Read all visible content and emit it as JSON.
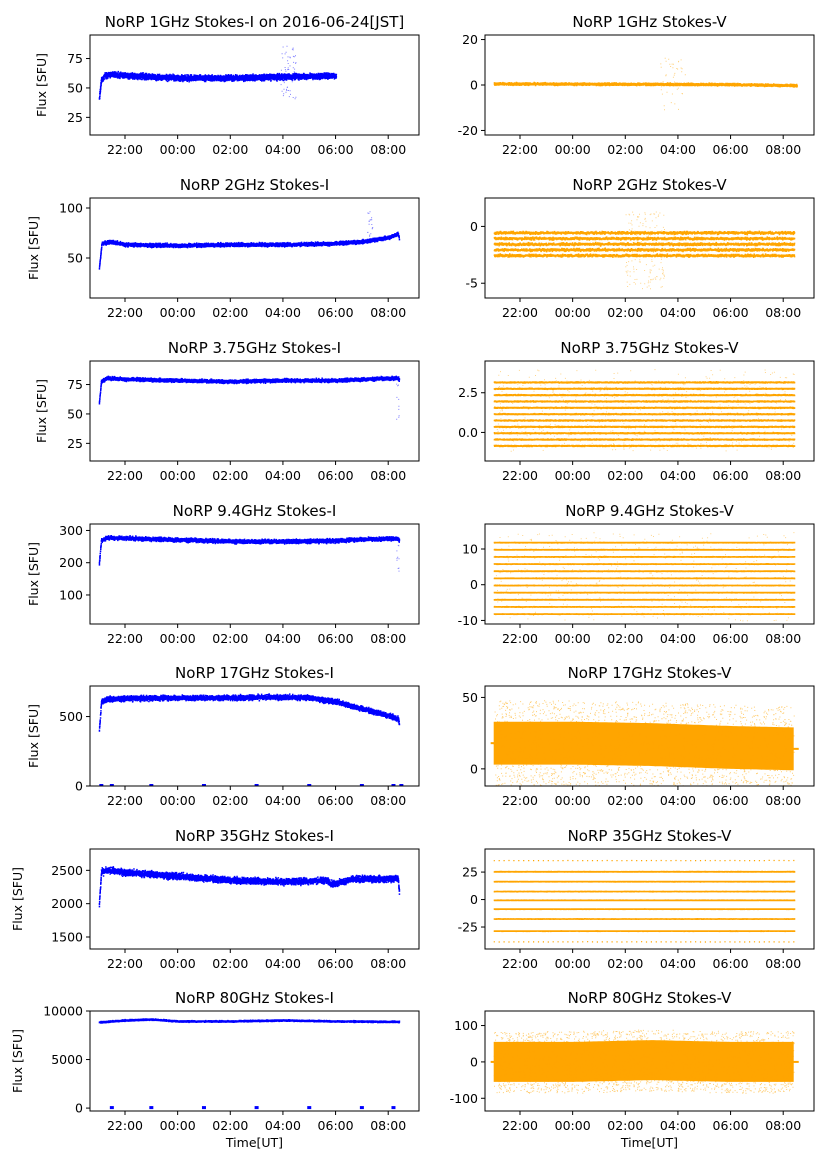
{
  "figure": {
    "observatory": "NoRP",
    "date_label": "2016-06-24[JST]",
    "x_label": "Time[UT]",
    "y_label": "Flux [SFU]"
  },
  "colors": {
    "stokes_i": "#0000ff",
    "stokes_v": "#ffa500"
  },
  "chart_data": [
    {
      "type": "scatter",
      "title": "NoRP 1GHz Stokes-I on 2016-06-24[JST]",
      "ylabel": "Flux [SFU]",
      "xlabel": "",
      "ylim": [
        10,
        95
      ],
      "yticks": [
        25,
        50,
        75
      ],
      "xlim": [
        20.67,
        33.17
      ],
      "xticks": [
        22,
        24,
        26,
        28,
        30,
        32
      ],
      "xticklabels": [
        "22:00",
        "00:00",
        "02:00",
        "04:00",
        "06:00",
        "08:00"
      ],
      "series": [
        {
          "stokes": "I",
          "color": "#0000ff",
          "x_start": 21.0,
          "x_end": 30.0,
          "baseline": [
            [
              21.0,
              41
            ],
            [
              21.08,
              57
            ],
            [
              21.2,
              61
            ],
            [
              21.5,
              62
            ],
            [
              22,
              61
            ],
            [
              23,
              60
            ],
            [
              24,
              59
            ],
            [
              26,
              59
            ],
            [
              28,
              60
            ],
            [
              29,
              60.5
            ],
            [
              30,
              61
            ]
          ],
          "noise": 2,
          "spikes": {
            "x_range": [
              27.9,
              28.5
            ],
            "low": 40,
            "high": 88,
            "count": 60
          }
        }
      ]
    },
    {
      "type": "scatter",
      "title": "NoRP 1GHz Stokes-V",
      "ylabel": "",
      "xlabel": "",
      "ylim": [
        -22,
        22
      ],
      "yticks": [
        -20,
        0,
        20
      ],
      "xlim": [
        20.67,
        33.17
      ],
      "xticks": [
        22,
        24,
        26,
        28,
        30,
        32
      ],
      "xticklabels": [
        "22:00",
        "00:00",
        "02:00",
        "04:00",
        "06:00",
        "08:00"
      ],
      "series": [
        {
          "stokes": "V",
          "color": "#ffa500",
          "x_start": 21.0,
          "x_end": 32.5,
          "baseline": [
            [
              21,
              0.8
            ],
            [
              30,
              0.5
            ],
            [
              32.5,
              0
            ]
          ],
          "noise": 0.4,
          "spikes": {
            "x_range": [
              27.3,
              28.4
            ],
            "low": -12,
            "high": 12,
            "count": 40
          }
        }
      ]
    },
    {
      "type": "scatter",
      "title": "NoRP 2GHz Stokes-I",
      "ylabel": "Flux [SFU]",
      "xlabel": "",
      "ylim": [
        10,
        110
      ],
      "yticks": [
        50,
        100
      ],
      "xlim": [
        20.67,
        33.17
      ],
      "xticks": [
        22,
        24,
        26,
        28,
        30,
        32
      ],
      "xticklabels": [
        "22:00",
        "00:00",
        "02:00",
        "04:00",
        "06:00",
        "08:00"
      ],
      "series": [
        {
          "stokes": "I",
          "color": "#0000ff",
          "x_start": 21.0,
          "x_end": 32.4,
          "baseline": [
            [
              21.0,
              40
            ],
            [
              21.1,
              65
            ],
            [
              21.4,
              67
            ],
            [
              22,
              64
            ],
            [
              24,
              63
            ],
            [
              26,
              64
            ],
            [
              28,
              64
            ],
            [
              30,
              65
            ],
            [
              31,
              67
            ],
            [
              32,
              71
            ],
            [
              32.35,
              75
            ],
            [
              32.4,
              70
            ]
          ],
          "noise": 1.5,
          "spikes": {
            "x_range": [
              31.2,
              31.4
            ],
            "low": 70,
            "high": 98,
            "count": 20
          }
        }
      ]
    },
    {
      "type": "scatter",
      "title": "NoRP 2GHz Stokes-V",
      "ylabel": "",
      "xlabel": "",
      "ylim": [
        -6.3,
        2.5
      ],
      "yticks": [
        -5,
        0
      ],
      "xlim": [
        20.67,
        33.17
      ],
      "xticks": [
        22,
        24,
        26,
        28,
        30,
        32
      ],
      "xticklabels": [
        "22:00",
        "00:00",
        "02:00",
        "04:00",
        "06:00",
        "08:00"
      ],
      "series": [
        {
          "stokes": "V",
          "color": "#ffa500",
          "x_start": 21.0,
          "x_end": 32.4,
          "levels": [
            -0.5,
            -1.0,
            -1.5,
            -2.0,
            -2.5
          ],
          "noise": 0.3,
          "spikes": {
            "x_range": [
              26.0,
              27.5
            ],
            "low": -5.5,
            "high": 1.5,
            "count": 25
          }
        }
      ]
    },
    {
      "type": "scatter",
      "title": "NoRP 3.75GHz Stokes-I",
      "ylabel": "Flux [SFU]",
      "xlabel": "",
      "ylim": [
        10,
        95
      ],
      "yticks": [
        25,
        50,
        75
      ],
      "xlim": [
        20.67,
        33.17
      ],
      "xticks": [
        22,
        24,
        26,
        28,
        30,
        32
      ],
      "xticklabels": [
        "22:00",
        "00:00",
        "02:00",
        "04:00",
        "06:00",
        "08:00"
      ],
      "series": [
        {
          "stokes": "I",
          "color": "#0000ff",
          "x_start": 21.0,
          "x_end": 32.4,
          "baseline": [
            [
              21.0,
              60
            ],
            [
              21.08,
              78
            ],
            [
              21.3,
              81
            ],
            [
              22,
              80
            ],
            [
              24,
              79
            ],
            [
              26,
              78
            ],
            [
              28,
              79
            ],
            [
              30,
              79
            ],
            [
              31,
              80
            ],
            [
              32.3,
              81
            ],
            [
              32.4,
              80
            ]
          ],
          "noise": 1.2,
          "spikes": {
            "x_range": [
              32.3,
              32.4
            ],
            "low": 45,
            "high": 80,
            "count": 10
          }
        }
      ]
    },
    {
      "type": "scatter",
      "title": "NoRP 3.75GHz Stokes-V",
      "ylabel": "",
      "xlabel": "",
      "ylim": [
        -1.8,
        4.5
      ],
      "yticks": [
        0.0,
        2.5
      ],
      "ytickdecimals": 1,
      "xlim": [
        20.67,
        33.17
      ],
      "xticks": [
        22,
        24,
        26,
        28,
        30,
        32
      ],
      "xticklabels": [
        "22:00",
        "00:00",
        "02:00",
        "04:00",
        "06:00",
        "08:00"
      ],
      "series": [
        {
          "stokes": "V",
          "color": "#ffa500",
          "x_start": 21.0,
          "x_end": 32.4,
          "levels": [
            -0.8,
            -0.4,
            0.0,
            0.4,
            0.8,
            1.2,
            1.6,
            2.0,
            2.4,
            2.8,
            3.2
          ],
          "noise": 0.08,
          "spikes": {
            "x_range": [
              21.0,
              32.4
            ],
            "low": -1.2,
            "high": 4.0,
            "count": 60
          }
        }
      ]
    },
    {
      "type": "scatter",
      "title": "NoRP 9.4GHz Stokes-I",
      "ylabel": "Flux [SFU]",
      "xlabel": "",
      "ylim": [
        10,
        320
      ],
      "yticks": [
        100,
        200,
        300
      ],
      "xlim": [
        20.67,
        33.17
      ],
      "xticks": [
        22,
        24,
        26,
        28,
        30,
        32
      ],
      "xticklabels": [
        "22:00",
        "00:00",
        "02:00",
        "04:00",
        "06:00",
        "08:00"
      ],
      "series": [
        {
          "stokes": "I",
          "color": "#0000ff",
          "x_start": 21.0,
          "x_end": 32.4,
          "baseline": [
            [
              21.0,
              200
            ],
            [
              21.08,
              270
            ],
            [
              21.3,
              280
            ],
            [
              22,
              278
            ],
            [
              24,
              273
            ],
            [
              26,
              268
            ],
            [
              28,
              268
            ],
            [
              30,
              270
            ],
            [
              31,
              275
            ],
            [
              32.3,
              277
            ],
            [
              32.4,
              272
            ]
          ],
          "noise": 5,
          "spikes": {
            "x_range": [
              32.3,
              32.4
            ],
            "low": 160,
            "high": 280,
            "count": 10
          }
        }
      ]
    },
    {
      "type": "scatter",
      "title": "NoRP 9.4GHz Stokes-V",
      "ylabel": "",
      "xlabel": "",
      "ylim": [
        -11,
        17
      ],
      "yticks": [
        -10,
        0,
        10
      ],
      "xlim": [
        20.67,
        33.17
      ],
      "xticks": [
        22,
        24,
        26,
        28,
        30,
        32
      ],
      "xticklabels": [
        "22:00",
        "00:00",
        "02:00",
        "04:00",
        "06:00",
        "08:00"
      ],
      "series": [
        {
          "stokes": "V",
          "color": "#ffa500",
          "x_start": 21.0,
          "x_end": 32.4,
          "levels": [
            -8,
            -6,
            -4,
            -2,
            0,
            2,
            4,
            6,
            8,
            10,
            12
          ],
          "noise": 0.15,
          "spikes": {
            "x_range": [
              21.0,
              32.4
            ],
            "low": -10,
            "high": 15,
            "count": 60
          }
        }
      ]
    },
    {
      "type": "scatter",
      "title": "NoRP 17GHz Stokes-I",
      "ylabel": "Flux [SFU]",
      "xlabel": "",
      "ylim": [
        0,
        720
      ],
      "yticks": [
        0,
        500
      ],
      "xlim": [
        20.67,
        33.17
      ],
      "xticks": [
        22,
        24,
        26,
        28,
        30,
        32
      ],
      "xticklabels": [
        "22:00",
        "00:00",
        "02:00",
        "04:00",
        "06:00",
        "08:00"
      ],
      "series": [
        {
          "stokes": "I",
          "color": "#0000ff",
          "x_start": 21.0,
          "x_end": 32.4,
          "baseline": [
            [
              21.0,
              400
            ],
            [
              21.08,
              610
            ],
            [
              21.3,
              630
            ],
            [
              22,
              635
            ],
            [
              24,
              640
            ],
            [
              26,
              640
            ],
            [
              28,
              645
            ],
            [
              29,
              640
            ],
            [
              30,
              610
            ],
            [
              31,
              560
            ],
            [
              32,
              510
            ],
            [
              32.35,
              490
            ],
            [
              32.4,
              450
            ]
          ],
          "noise": 15,
          "dropouts": [
            21.1,
            21.5,
            23.0,
            25.0,
            27.0,
            29.0,
            31.0,
            32.2,
            32.5
          ]
        }
      ]
    },
    {
      "type": "scatter",
      "title": "NoRP 17GHz Stokes-V",
      "ylabel": "",
      "xlabel": "",
      "ylim": [
        -12,
        58
      ],
      "yticks": [
        0,
        50
      ],
      "xlim": [
        20.67,
        33.17
      ],
      "xticks": [
        22,
        24,
        26,
        28,
        30,
        32
      ],
      "xticklabels": [
        "22:00",
        "00:00",
        "02:00",
        "04:00",
        "06:00",
        "08:00"
      ],
      "series": [
        {
          "stokes": "V",
          "color": "#ffa500",
          "x_start": 21.0,
          "x_end": 32.4,
          "band": [
            [
              21.0,
              18
            ],
            [
              24,
              18
            ],
            [
              27,
              17
            ],
            [
              30,
              15
            ],
            [
              32.4,
              14
            ]
          ],
          "band_half": 15,
          "outlier": 30,
          "density": 2200
        }
      ]
    },
    {
      "type": "scatter",
      "title": "NoRP 35GHz Stokes-I",
      "ylabel": "Flux [SFU]",
      "xlabel": "",
      "ylim": [
        1320,
        2820
      ],
      "yticks": [
        1500,
        2000,
        2500
      ],
      "xlim": [
        20.67,
        33.17
      ],
      "xticks": [
        22,
        24,
        26,
        28,
        30,
        32
      ],
      "xticklabels": [
        "22:00",
        "00:00",
        "02:00",
        "04:00",
        "06:00",
        "08:00"
      ],
      "series": [
        {
          "stokes": "I",
          "color": "#0000ff",
          "x_start": 21.0,
          "x_end": 32.4,
          "baseline": [
            [
              21.0,
              2000
            ],
            [
              21.08,
              2480
            ],
            [
              21.3,
              2510
            ],
            [
              22,
              2480
            ],
            [
              24,
              2420
            ],
            [
              26,
              2360
            ],
            [
              28,
              2340
            ],
            [
              29,
              2350
            ],
            [
              29.6,
              2360
            ],
            [
              29.9,
              2300
            ],
            [
              30.5,
              2370
            ],
            [
              31,
              2380
            ],
            [
              32,
              2380
            ],
            [
              32.35,
              2390
            ],
            [
              32.4,
              2200
            ]
          ],
          "noise": 40
        }
      ]
    },
    {
      "type": "scatter",
      "title": "NoRP 35GHz Stokes-V",
      "ylabel": "",
      "xlabel": "",
      "ylim": [
        -45,
        46
      ],
      "yticks": [
        -25,
        0,
        25
      ],
      "xlim": [
        20.67,
        33.17
      ],
      "xticks": [
        22,
        24,
        26,
        28,
        30,
        32
      ],
      "xticklabels": [
        "22:00",
        "00:00",
        "02:00",
        "04:00",
        "06:00",
        "08:00"
      ],
      "series": [
        {
          "stokes": "V",
          "color": "#ffa500",
          "x_start": 21.0,
          "x_end": 32.4,
          "levels": [
            -38,
            -28,
            -17,
            -8,
            0,
            8,
            17,
            26,
            36
          ],
          "noise": 0.4,
          "sparse_levels": [
            -38,
            36
          ]
        }
      ]
    },
    {
      "type": "scatter",
      "title": "NoRP 80GHz Stokes-I",
      "ylabel": "Flux [SFU]",
      "xlabel": "Time[UT]",
      "ylim": [
        -300,
        10000
      ],
      "yticks": [
        0,
        5000,
        10000
      ],
      "xlim": [
        20.67,
        33.17
      ],
      "xticks": [
        22,
        24,
        26,
        28,
        30,
        32
      ],
      "xticklabels": [
        "22:00",
        "00:00",
        "02:00",
        "04:00",
        "06:00",
        "08:00"
      ],
      "series": [
        {
          "stokes": "I",
          "color": "#0000ff",
          "x_start": 21.0,
          "x_end": 32.4,
          "baseline": [
            [
              21.0,
              8900
            ],
            [
              22,
              9100
            ],
            [
              23,
              9200
            ],
            [
              24,
              9000
            ],
            [
              26,
              9000
            ],
            [
              28,
              9100
            ],
            [
              30,
              9000
            ],
            [
              32.4,
              8950
            ]
          ],
          "noise": 60,
          "dropouts": [
            21.5,
            23.0,
            25.0,
            27.0,
            29.0,
            31.0,
            32.2
          ]
        }
      ]
    },
    {
      "type": "scatter",
      "title": "NoRP 80GHz Stokes-V",
      "ylabel": "",
      "xlabel": "Time[UT]",
      "ylim": [
        -135,
        140
      ],
      "yticks": [
        -100,
        0,
        100
      ],
      "xlim": [
        20.67,
        33.17
      ],
      "xticks": [
        22,
        24,
        26,
        28,
        30,
        32
      ],
      "xticklabels": [
        "22:00",
        "00:00",
        "02:00",
        "04:00",
        "06:00",
        "08:00"
      ],
      "series": [
        {
          "stokes": "V",
          "color": "#ffa500",
          "x_start": 21.0,
          "x_end": 32.4,
          "band": [
            [
              21.0,
              0
            ],
            [
              24,
              0
            ],
            [
              27,
              5
            ],
            [
              30,
              0
            ],
            [
              32.4,
              0
            ]
          ],
          "band_half": 55,
          "outlier": 85,
          "density": 2600
        }
      ]
    }
  ]
}
